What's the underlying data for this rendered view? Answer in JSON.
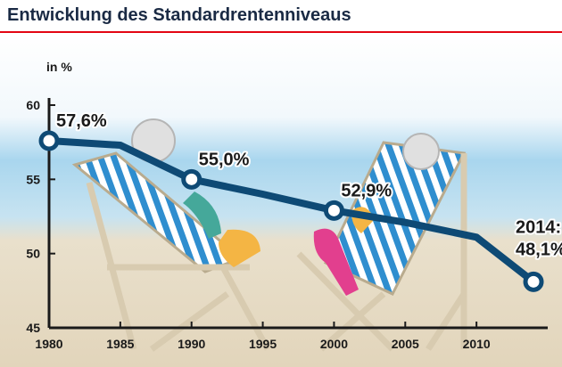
{
  "chart_data": {
    "type": "line",
    "title": "Entwicklung des Standardrentenniveaus",
    "ylabel": "in %",
    "xlim": [
      1980,
      2015
    ],
    "ylim": [
      45,
      60
    ],
    "x_ticks": [
      "1980",
      "1985",
      "1990",
      "1995",
      "2000",
      "2005",
      "2010"
    ],
    "y_ticks": [
      "60",
      "55",
      "50",
      "45"
    ],
    "grid": false,
    "series": [
      {
        "x": [
          1980,
          1985,
          1990,
          1995,
          2000,
          2005,
          2010,
          2014
        ],
        "values": [
          57.6,
          57.3,
          55.0,
          54.0,
          52.9,
          52.1,
          51.1,
          48.1
        ]
      }
    ],
    "markers": [
      {
        "x": 1980,
        "y": 57.6,
        "label": "57,6%"
      },
      {
        "x": 1990,
        "y": 55.0,
        "label": "55,0%"
      },
      {
        "x": 2000,
        "y": 52.9,
        "label": "52,9%"
      },
      {
        "x": 2014,
        "y": 48.1,
        "label_line1": "2014:",
        "label_line2": "48,1%"
      }
    ],
    "colors": {
      "line": "#0e4a75",
      "marker_fill": "#ffffff",
      "axis": "#1a1a1a",
      "title_rule": "#e30613",
      "sky_top": "#ffffff",
      "sea": "#a9d6ee",
      "sand": "#e7dcc7",
      "chair_stripe_blue": "#2f8ecf",
      "chair_frame": "#d8cbb0"
    }
  }
}
